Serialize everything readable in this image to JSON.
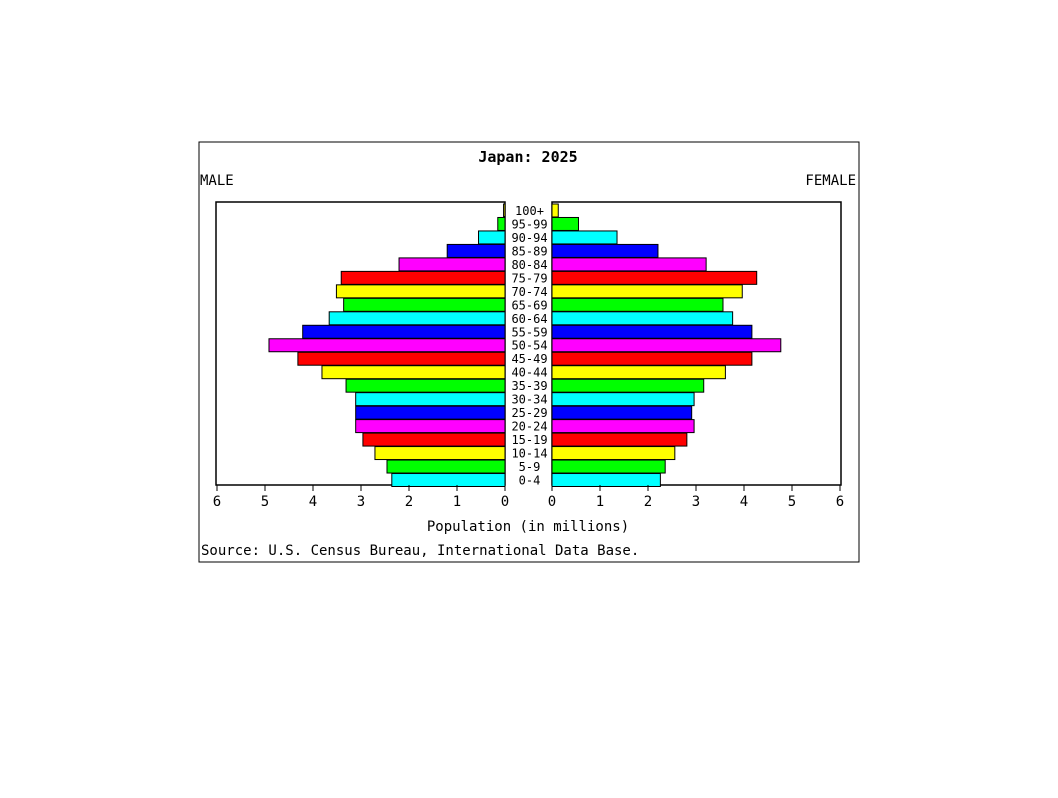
{
  "chart_data": {
    "type": "bar",
    "title": "Japan: 2025",
    "left_label": "MALE",
    "right_label": "FEMALE",
    "xlabel": "Population (in millions)",
    "source": "Source: U.S. Census Bureau, International Data Base.",
    "xlim": [
      0,
      6
    ],
    "x_ticks": [
      "6",
      "5",
      "4",
      "3",
      "2",
      "1",
      "0",
      "0",
      "1",
      "2",
      "3",
      "4",
      "5",
      "6"
    ],
    "categories": [
      "100+",
      "95-99",
      "90-94",
      "85-89",
      "80-84",
      "75-79",
      "70-74",
      "65-69",
      "60-64",
      "55-59",
      "50-54",
      "45-49",
      "40-44",
      "35-39",
      "30-34",
      "25-29",
      "20-24",
      "15-19",
      "10-14",
      "5-9",
      "0-4"
    ],
    "colors": [
      "#ffff00",
      "#00ff00",
      "#00ffff",
      "#0000ff",
      "#ff00ff",
      "#ff0000",
      "#ffff00",
      "#00ff00",
      "#00ffff",
      "#0000ff",
      "#ff00ff",
      "#ff0000",
      "#ffff00",
      "#00ff00",
      "#00ffff",
      "#0000ff",
      "#ff00ff",
      "#ff0000",
      "#ffff00",
      "#00ff00",
      "#00ffff"
    ],
    "series": [
      {
        "name": "MALE",
        "values": [
          0.03,
          0.15,
          0.55,
          1.2,
          2.2,
          3.4,
          3.5,
          3.35,
          3.65,
          4.2,
          4.9,
          4.3,
          3.8,
          3.3,
          3.1,
          3.1,
          3.1,
          2.95,
          2.7,
          2.45,
          2.35
        ]
      },
      {
        "name": "FEMALE",
        "values": [
          0.13,
          0.55,
          1.35,
          2.2,
          3.2,
          4.25,
          3.95,
          3.55,
          3.75,
          4.15,
          4.75,
          4.15,
          3.6,
          3.15,
          2.95,
          2.9,
          2.95,
          2.8,
          2.55,
          2.35,
          2.25
        ]
      }
    ],
    "grid": false,
    "legend": "none"
  }
}
